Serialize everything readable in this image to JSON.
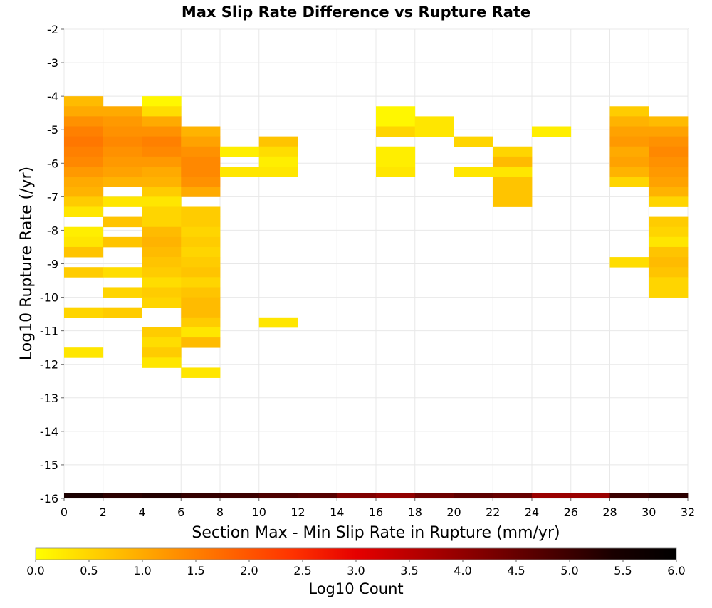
{
  "chart_data": {
    "type": "heatmap",
    "title": "Max Slip Rate Difference vs Rupture Rate",
    "xlabel": "Section Max - Min Slip Rate in Rupture (mm/yr)",
    "ylabel": "Log10 Rupture Rate (/yr)",
    "xlim": [
      0,
      32
    ],
    "ylim": [
      -16,
      -2
    ],
    "x_bin_width": 2,
    "y_bin_height": 0.3,
    "x_ticks": [
      "0",
      "2",
      "4",
      "6",
      "8",
      "10",
      "12",
      "14",
      "16",
      "18",
      "20",
      "22",
      "24",
      "26",
      "28",
      "30",
      "32"
    ],
    "y_ticks": [
      "-2",
      "-3",
      "-4",
      "-5",
      "-6",
      "-7",
      "-8",
      "-9",
      "-10",
      "-11",
      "-12",
      "-13",
      "-14",
      "-15",
      "-16"
    ],
    "grid": true,
    "colorbar": {
      "label": "Log10 Count",
      "range": [
        0,
        6
      ],
      "ticks": [
        "0.0",
        "0.5",
        "1.0",
        "1.5",
        "2.0",
        "2.5",
        "3.0",
        "3.5",
        "4.0",
        "4.5",
        "5.0",
        "5.5",
        "6.0"
      ],
      "stops": [
        "#ffff00",
        "#ffcc00",
        "#ff9900",
        "#ff6600",
        "#ff3300",
        "#e60000",
        "#b30000",
        "#800000",
        "#4d0000",
        "#1a0000",
        "#000000"
      ]
    },
    "cells": [
      {
        "x": 0,
        "y": -4.0,
        "value": 0.8
      },
      {
        "x": 0,
        "y": -4.3,
        "value": 1.0
      },
      {
        "x": 0,
        "y": -4.6,
        "value": 1.3
      },
      {
        "x": 0,
        "y": -4.9,
        "value": 1.5
      },
      {
        "x": 0,
        "y": -5.2,
        "value": 1.6
      },
      {
        "x": 0,
        "y": -5.5,
        "value": 1.5
      },
      {
        "x": 0,
        "y": -5.8,
        "value": 1.4
      },
      {
        "x": 0,
        "y": -6.1,
        "value": 1.2
      },
      {
        "x": 0,
        "y": -6.4,
        "value": 1.0
      },
      {
        "x": 0,
        "y": -6.7,
        "value": 0.9
      },
      {
        "x": 0,
        "y": -7.0,
        "value": 0.6
      },
      {
        "x": 0,
        "y": -7.3,
        "value": 0.3
      },
      {
        "x": 0,
        "y": -7.9,
        "value": 0.2
      },
      {
        "x": 0,
        "y": -8.2,
        "value": 0.3
      },
      {
        "x": 0,
        "y": -8.5,
        "value": 0.7
      },
      {
        "x": 0,
        "y": -9.1,
        "value": 0.6
      },
      {
        "x": 0,
        "y": -10.3,
        "value": 0.5
      },
      {
        "x": 0,
        "y": -11.5,
        "value": 0.3
      },
      {
        "x": 2,
        "y": -4.3,
        "value": 1.0
      },
      {
        "x": 2,
        "y": -4.6,
        "value": 1.2
      },
      {
        "x": 2,
        "y": -4.9,
        "value": 1.3
      },
      {
        "x": 2,
        "y": -5.2,
        "value": 1.4
      },
      {
        "x": 2,
        "y": -5.5,
        "value": 1.3
      },
      {
        "x": 2,
        "y": -5.8,
        "value": 1.2
      },
      {
        "x": 2,
        "y": -6.1,
        "value": 1.1
      },
      {
        "x": 2,
        "y": -6.4,
        "value": 0.9
      },
      {
        "x": 2,
        "y": -7.0,
        "value": 0.3
      },
      {
        "x": 2,
        "y": -7.6,
        "value": 0.7
      },
      {
        "x": 2,
        "y": -8.2,
        "value": 0.7
      },
      {
        "x": 2,
        "y": -9.1,
        "value": 0.4
      },
      {
        "x": 2,
        "y": -9.7,
        "value": 0.5
      },
      {
        "x": 2,
        "y": -10.3,
        "value": 0.6
      },
      {
        "x": 4,
        "y": -4.0,
        "value": 0.1
      },
      {
        "x": 4,
        "y": -4.3,
        "value": 0.4
      },
      {
        "x": 4,
        "y": -4.6,
        "value": 1.0
      },
      {
        "x": 4,
        "y": -4.9,
        "value": 1.3
      },
      {
        "x": 4,
        "y": -5.2,
        "value": 1.5
      },
      {
        "x": 4,
        "y": -5.5,
        "value": 1.4
      },
      {
        "x": 4,
        "y": -5.8,
        "value": 1.2
      },
      {
        "x": 4,
        "y": -6.1,
        "value": 1.0
      },
      {
        "x": 4,
        "y": -6.4,
        "value": 0.9
      },
      {
        "x": 4,
        "y": -6.7,
        "value": 0.6
      },
      {
        "x": 4,
        "y": -7.0,
        "value": 0.3
      },
      {
        "x": 4,
        "y": -7.3,
        "value": 0.5
      },
      {
        "x": 4,
        "y": -7.6,
        "value": 0.5
      },
      {
        "x": 4,
        "y": -7.9,
        "value": 0.8
      },
      {
        "x": 4,
        "y": -8.2,
        "value": 0.9
      },
      {
        "x": 4,
        "y": -8.5,
        "value": 0.8
      },
      {
        "x": 4,
        "y": -8.8,
        "value": 0.7
      },
      {
        "x": 4,
        "y": -9.1,
        "value": 0.6
      },
      {
        "x": 4,
        "y": -9.4,
        "value": 0.4
      },
      {
        "x": 4,
        "y": -9.7,
        "value": 0.6
      },
      {
        "x": 4,
        "y": -10.0,
        "value": 0.5
      },
      {
        "x": 4,
        "y": -10.9,
        "value": 0.6
      },
      {
        "x": 4,
        "y": -11.2,
        "value": 0.4
      },
      {
        "x": 4,
        "y": -11.5,
        "value": 0.6
      },
      {
        "x": 4,
        "y": -11.8,
        "value": 0.3
      },
      {
        "x": 6,
        "y": -4.9,
        "value": 0.9
      },
      {
        "x": 6,
        "y": -5.2,
        "value": 1.1
      },
      {
        "x": 6,
        "y": -5.5,
        "value": 1.3
      },
      {
        "x": 6,
        "y": -5.8,
        "value": 1.4
      },
      {
        "x": 6,
        "y": -6.1,
        "value": 1.4
      },
      {
        "x": 6,
        "y": -6.4,
        "value": 1.3
      },
      {
        "x": 6,
        "y": -6.7,
        "value": 1.0
      },
      {
        "x": 6,
        "y": -7.3,
        "value": 0.6
      },
      {
        "x": 6,
        "y": -7.6,
        "value": 0.6
      },
      {
        "x": 6,
        "y": -7.9,
        "value": 0.5
      },
      {
        "x": 6,
        "y": -8.2,
        "value": 0.6
      },
      {
        "x": 6,
        "y": -8.5,
        "value": 0.5
      },
      {
        "x": 6,
        "y": -8.8,
        "value": 0.6
      },
      {
        "x": 6,
        "y": -9.1,
        "value": 0.7
      },
      {
        "x": 6,
        "y": -9.4,
        "value": 0.5
      },
      {
        "x": 6,
        "y": -9.7,
        "value": 0.7
      },
      {
        "x": 6,
        "y": -10.0,
        "value": 0.8
      },
      {
        "x": 6,
        "y": -10.3,
        "value": 0.8
      },
      {
        "x": 6,
        "y": -10.6,
        "value": 0.6
      },
      {
        "x": 6,
        "y": -10.9,
        "value": 0.3
      },
      {
        "x": 6,
        "y": -11.2,
        "value": 0.8
      },
      {
        "x": 6,
        "y": -12.1,
        "value": 0.3
      },
      {
        "x": 8,
        "y": -5.5,
        "value": 0.2
      },
      {
        "x": 8,
        "y": -6.1,
        "value": 0.3
      },
      {
        "x": 10,
        "y": -5.2,
        "value": 0.7
      },
      {
        "x": 10,
        "y": -5.5,
        "value": 0.4
      },
      {
        "x": 10,
        "y": -5.8,
        "value": 0.2
      },
      {
        "x": 10,
        "y": -6.1,
        "value": 0.3
      },
      {
        "x": 10,
        "y": -10.6,
        "value": 0.3
      },
      {
        "x": 16,
        "y": -4.3,
        "value": 0.1
      },
      {
        "x": 16,
        "y": -4.6,
        "value": 0.1
      },
      {
        "x": 16,
        "y": -4.9,
        "value": 0.5
      },
      {
        "x": 16,
        "y": -5.5,
        "value": 0.2
      },
      {
        "x": 16,
        "y": -5.8,
        "value": 0.2
      },
      {
        "x": 16,
        "y": -6.1,
        "value": 0.3
      },
      {
        "x": 18,
        "y": -4.6,
        "value": 0.3
      },
      {
        "x": 18,
        "y": -4.9,
        "value": 0.3
      },
      {
        "x": 20,
        "y": -5.2,
        "value": 0.5
      },
      {
        "x": 20,
        "y": -6.1,
        "value": 0.3
      },
      {
        "x": 22,
        "y": -5.5,
        "value": 0.5
      },
      {
        "x": 22,
        "y": -5.8,
        "value": 0.8
      },
      {
        "x": 22,
        "y": -6.1,
        "value": 0.3
      },
      {
        "x": 22,
        "y": -6.4,
        "value": 0.7
      },
      {
        "x": 22,
        "y": -6.7,
        "value": 0.7
      },
      {
        "x": 22,
        "y": -7.0,
        "value": 0.7
      },
      {
        "x": 24,
        "y": -4.9,
        "value": 0.2
      },
      {
        "x": 28,
        "y": -4.3,
        "value": 0.6
      },
      {
        "x": 28,
        "y": -4.6,
        "value": 0.9
      },
      {
        "x": 28,
        "y": -4.9,
        "value": 1.1
      },
      {
        "x": 28,
        "y": -5.2,
        "value": 1.2
      },
      {
        "x": 28,
        "y": -5.5,
        "value": 1.0
      },
      {
        "x": 28,
        "y": -5.8,
        "value": 1.1
      },
      {
        "x": 28,
        "y": -6.1,
        "value": 0.9
      },
      {
        "x": 28,
        "y": -6.4,
        "value": 0.5
      },
      {
        "x": 28,
        "y": -8.8,
        "value": 0.4
      },
      {
        "x": 30,
        "y": -4.6,
        "value": 0.8
      },
      {
        "x": 30,
        "y": -4.9,
        "value": 1.1
      },
      {
        "x": 30,
        "y": -5.2,
        "value": 1.3
      },
      {
        "x": 30,
        "y": -5.5,
        "value": 1.4
      },
      {
        "x": 30,
        "y": -5.8,
        "value": 1.3
      },
      {
        "x": 30,
        "y": -6.1,
        "value": 1.2
      },
      {
        "x": 30,
        "y": -6.4,
        "value": 1.1
      },
      {
        "x": 30,
        "y": -6.7,
        "value": 0.9
      },
      {
        "x": 30,
        "y": -7.0,
        "value": 0.5
      },
      {
        "x": 30,
        "y": -7.6,
        "value": 0.6
      },
      {
        "x": 30,
        "y": -7.9,
        "value": 0.5
      },
      {
        "x": 30,
        "y": -8.2,
        "value": 0.3
      },
      {
        "x": 30,
        "y": -8.5,
        "value": 0.7
      },
      {
        "x": 30,
        "y": -8.8,
        "value": 0.8
      },
      {
        "x": 30,
        "y": -9.1,
        "value": 0.7
      },
      {
        "x": 30,
        "y": -9.4,
        "value": 0.5
      },
      {
        "x": 30,
        "y": -9.7,
        "value": 0.5
      }
    ],
    "bottom_row": {
      "y": -16,
      "cells": [
        {
          "x": 0,
          "value": 5.4
        },
        {
          "x": 2,
          "value": 5.2
        },
        {
          "x": 4,
          "value": 5.3
        },
        {
          "x": 6,
          "value": 5.1
        },
        {
          "x": 8,
          "value": 5.0
        },
        {
          "x": 10,
          "value": 4.8
        },
        {
          "x": 12,
          "value": 4.7
        },
        {
          "x": 14,
          "value": 4.2
        },
        {
          "x": 16,
          "value": 4.0
        },
        {
          "x": 18,
          "value": 4.4
        },
        {
          "x": 20,
          "value": 4.6
        },
        {
          "x": 22,
          "value": 4.5
        },
        {
          "x": 24,
          "value": 3.9
        },
        {
          "x": 26,
          "value": 3.9
        },
        {
          "x": 28,
          "value": 5.0
        },
        {
          "x": 30,
          "value": 5.2
        }
      ]
    }
  }
}
